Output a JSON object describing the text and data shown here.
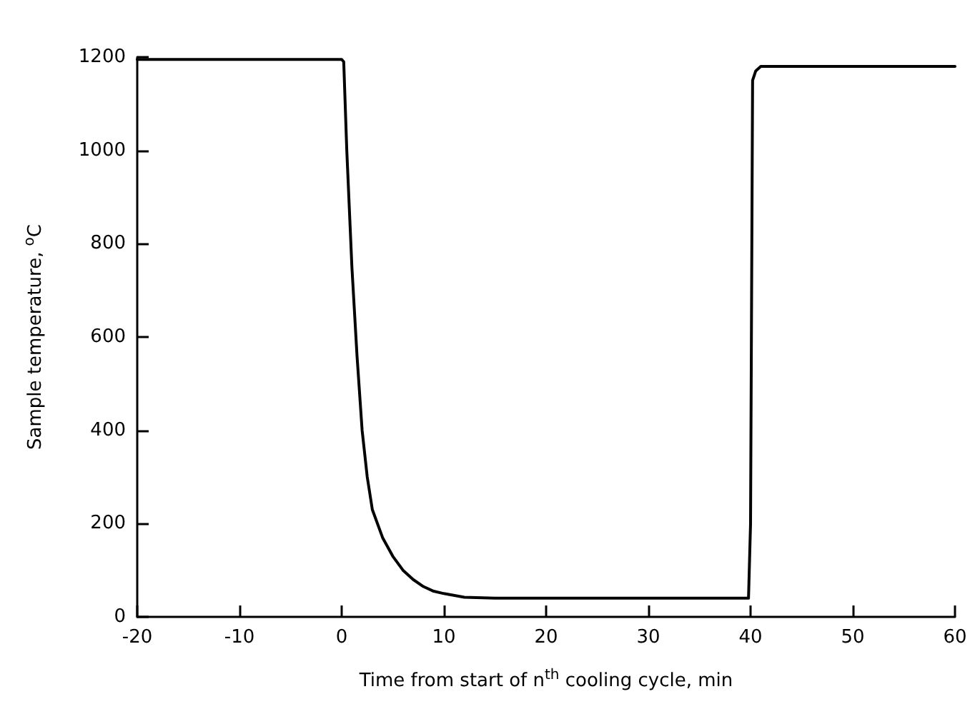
{
  "chart_data": {
    "type": "line",
    "xlabel": "Time from start of n$^{th}$ cooling cycle, min",
    "ylabel": "Sample temperature, $^{o}$C",
    "series": [
      {
        "color": "#000000",
        "x": [
          -20,
          -10,
          0,
          0.2,
          0.5,
          1,
          1.5,
          2,
          2.5,
          3,
          4,
          5,
          6,
          7,
          8,
          9,
          10,
          12,
          15,
          20,
          30,
          39.8,
          40,
          40.2,
          40.5,
          41,
          45,
          50,
          60
        ],
        "values": [
          1195,
          1195,
          1195,
          1190,
          1000,
          750,
          560,
          400,
          300,
          230,
          170,
          130,
          100,
          80,
          65,
          55,
          50,
          42,
          40,
          40,
          40,
          40,
          200,
          1150,
          1170,
          1180,
          1180,
          1180,
          1180
        ]
      }
    ],
    "xlim": [
      -20,
      60
    ],
    "xticks": [
      -20,
      -10,
      0,
      10,
      20,
      30,
      40,
      50,
      60
    ],
    "ylim": [
      0,
      1200
    ],
    "yticks": [
      0,
      200,
      400,
      600,
      800,
      1000,
      1200
    ],
    "grid": false,
    "marker": "none",
    "line_style": "solid"
  }
}
